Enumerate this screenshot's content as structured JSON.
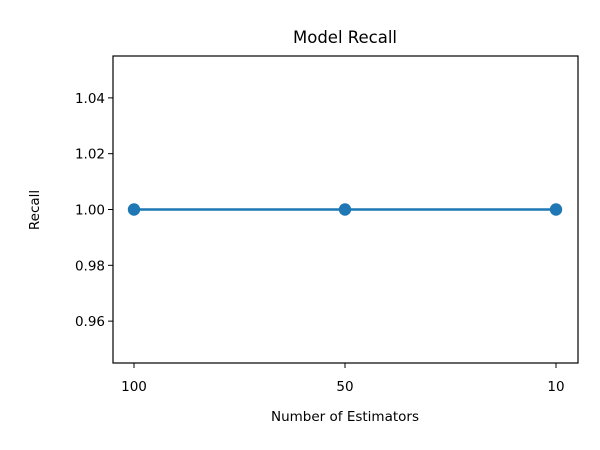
{
  "chart_data": {
    "type": "line",
    "title": "Model Recall",
    "xlabel": "Number of Estimators",
    "ylabel": "Recall",
    "categories": [
      "100",
      "50",
      "10"
    ],
    "series": [
      {
        "values": [
          1.0,
          1.0,
          1.0
        ],
        "color": "#1f77b4",
        "marker": "circle"
      }
    ],
    "ylim": [
      0.945,
      1.055
    ],
    "yticks": [
      0.96,
      0.98,
      1.0,
      1.02,
      1.04
    ],
    "ytick_labels": [
      "0.96",
      "0.98",
      "1.00",
      "1.02",
      "1.04"
    ],
    "grid": false,
    "legend": "none"
  }
}
